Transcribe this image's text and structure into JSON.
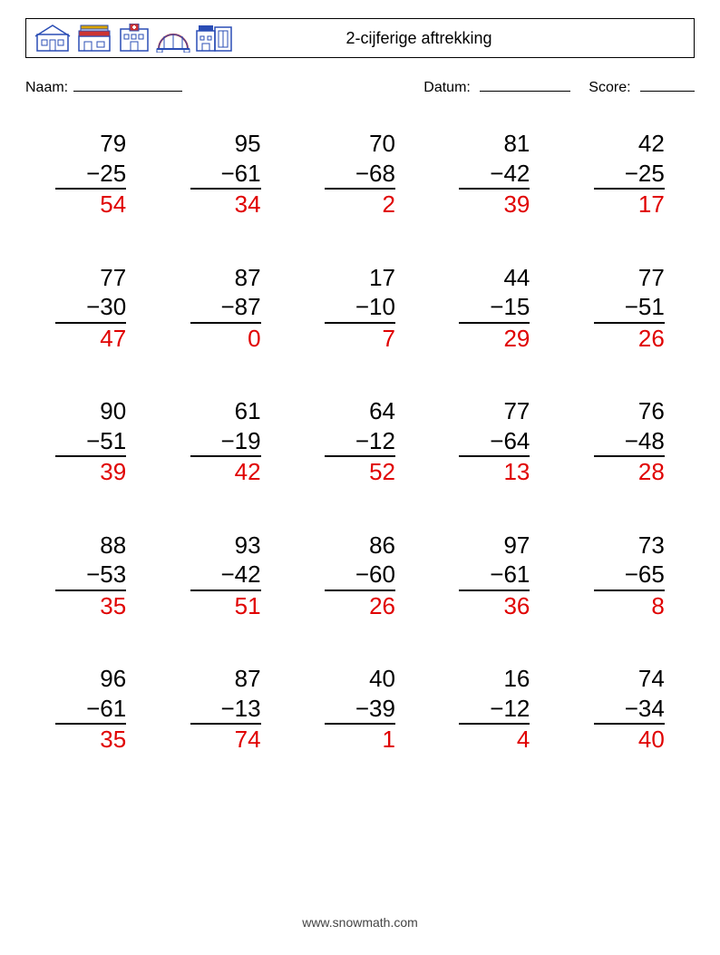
{
  "header": {
    "title": "2-cijferige aftrekking"
  },
  "meta": {
    "name_label": "Naam:",
    "date_label": "Datum:",
    "score_label": "Score:"
  },
  "layout": {
    "columns": 5,
    "rows": 5,
    "problem_font_size": 26,
    "answer_color": "#e00000",
    "text_color": "#000000",
    "background_color": "#ffffff",
    "icon_stroke": "#2a4db5",
    "icon_fill": "#cc3333",
    "icon_yellow": "#d9a300",
    "footer_color": "#444444"
  },
  "problems": [
    {
      "a": "79",
      "b": "25",
      "ans": "54"
    },
    {
      "a": "95",
      "b": "61",
      "ans": "34"
    },
    {
      "a": "70",
      "b": "68",
      "ans": "2"
    },
    {
      "a": "81",
      "b": "42",
      "ans": "39"
    },
    {
      "a": "42",
      "b": "25",
      "ans": "17"
    },
    {
      "a": "77",
      "b": "30",
      "ans": "47"
    },
    {
      "a": "87",
      "b": "87",
      "ans": "0"
    },
    {
      "a": "17",
      "b": "10",
      "ans": "7"
    },
    {
      "a": "44",
      "b": "15",
      "ans": "29"
    },
    {
      "a": "77",
      "b": "51",
      "ans": "26"
    },
    {
      "a": "90",
      "b": "51",
      "ans": "39"
    },
    {
      "a": "61",
      "b": "19",
      "ans": "42"
    },
    {
      "a": "64",
      "b": "12",
      "ans": "52"
    },
    {
      "a": "77",
      "b": "64",
      "ans": "13"
    },
    {
      "a": "76",
      "b": "48",
      "ans": "28"
    },
    {
      "a": "88",
      "b": "53",
      "ans": "35"
    },
    {
      "a": "93",
      "b": "42",
      "ans": "51"
    },
    {
      "a": "86",
      "b": "60",
      "ans": "26"
    },
    {
      "a": "97",
      "b": "61",
      "ans": "36"
    },
    {
      "a": "73",
      "b": "65",
      "ans": "8"
    },
    {
      "a": "96",
      "b": "61",
      "ans": "35"
    },
    {
      "a": "87",
      "b": "13",
      "ans": "74"
    },
    {
      "a": "40",
      "b": "39",
      "ans": "1"
    },
    {
      "a": "16",
      "b": "12",
      "ans": "4"
    },
    {
      "a": "74",
      "b": "34",
      "ans": "40"
    }
  ],
  "footer": {
    "text": "www.snowmath.com"
  }
}
